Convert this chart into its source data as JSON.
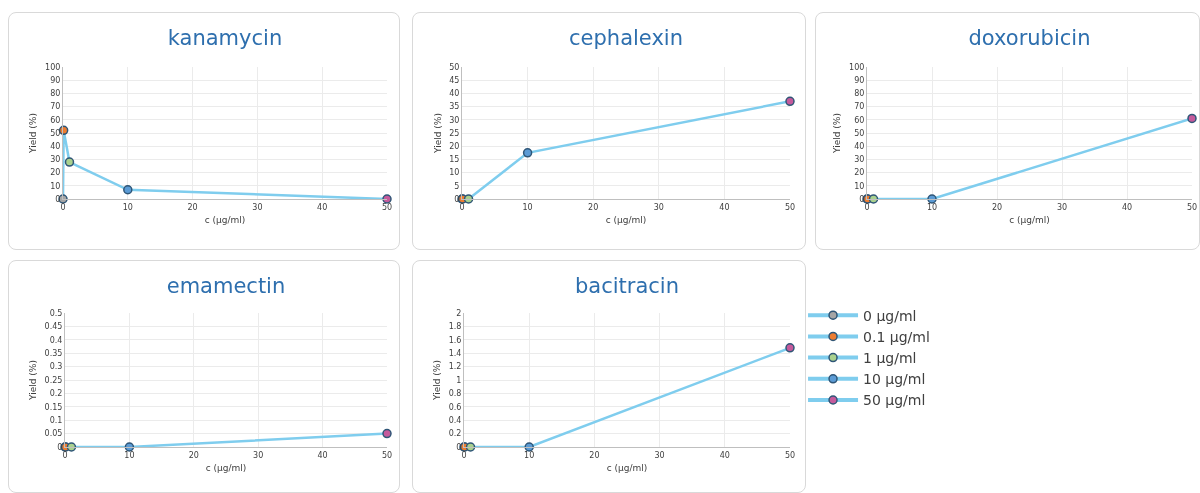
{
  "chart_data": [
    {
      "type": "line",
      "title": "kanamycin",
      "xlabel": "c (µg/ml)",
      "ylabel": "Yield (%)",
      "xlim": [
        0,
        50
      ],
      "xticks": [
        0,
        10,
        20,
        30,
        40,
        50
      ],
      "ylim": [
        0,
        100
      ],
      "yticks": [
        0,
        10,
        20,
        30,
        40,
        50,
        60,
        70,
        80,
        90,
        100
      ],
      "grid": true,
      "marker": "circle",
      "series": [
        {
          "color": "#7fcdee",
          "x": [
            0,
            0.1,
            1,
            10,
            50
          ],
          "values": [
            0,
            52,
            28,
            7,
            0
          ],
          "marker": "none"
        },
        {
          "type": "scatter",
          "color": "#a5a5a5",
          "x": [
            0
          ],
          "values": [
            0
          ]
        },
        {
          "type": "scatter",
          "color": "#ed7d31",
          "x": [
            0.1
          ],
          "values": [
            52
          ]
        },
        {
          "type": "scatter",
          "color": "#a9d18e",
          "x": [
            1
          ],
          "values": [
            28
          ]
        },
        {
          "type": "scatter",
          "color": "#5b9bd5",
          "x": [
            10
          ],
          "values": [
            7
          ]
        },
        {
          "type": "scatter",
          "color": "#c55a9c",
          "x": [
            50
          ],
          "values": [
            0
          ]
        }
      ]
    },
    {
      "type": "line",
      "title": "cephalexin",
      "xlabel": "c (µg/ml)",
      "ylabel": "Yield (%)",
      "xlim": [
        0,
        50
      ],
      "xticks": [
        0,
        10,
        20,
        30,
        40,
        50
      ],
      "ylim": [
        0,
        50
      ],
      "yticks": [
        0,
        5,
        10,
        15,
        20,
        25,
        30,
        35,
        40,
        45,
        50
      ],
      "grid": true,
      "marker": "circle",
      "series": [
        {
          "color": "#7fcdee",
          "x": [
            0,
            0.1,
            1,
            10,
            50
          ],
          "values": [
            0,
            0,
            0,
            17.5,
            37
          ],
          "marker": "none"
        },
        {
          "type": "scatter",
          "color": "#a5a5a5",
          "x": [
            0
          ],
          "values": [
            0
          ]
        },
        {
          "type": "scatter",
          "color": "#ed7d31",
          "x": [
            0.1
          ],
          "values": [
            0
          ]
        },
        {
          "type": "scatter",
          "color": "#a9d18e",
          "x": [
            1
          ],
          "values": [
            0
          ]
        },
        {
          "type": "scatter",
          "color": "#5b9bd5",
          "x": [
            10
          ],
          "values": [
            17.5
          ]
        },
        {
          "type": "scatter",
          "color": "#c55a9c",
          "x": [
            50
          ],
          "values": [
            37
          ]
        }
      ]
    },
    {
      "type": "line",
      "title": "doxorubicin",
      "xlabel": "c (µg/ml)",
      "ylabel": "Yield (%)",
      "xlim": [
        0,
        50
      ],
      "xticks": [
        0,
        10,
        20,
        30,
        40,
        50
      ],
      "ylim": [
        0,
        100
      ],
      "yticks": [
        0,
        10,
        20,
        30,
        40,
        50,
        60,
        70,
        80,
        90,
        100
      ],
      "grid": true,
      "marker": "circle",
      "series": [
        {
          "color": "#7fcdee",
          "x": [
            0,
            0.1,
            1,
            10,
            50
          ],
          "values": [
            0,
            0,
            0,
            0,
            61
          ],
          "marker": "none"
        },
        {
          "type": "scatter",
          "color": "#a5a5a5",
          "x": [
            0
          ],
          "values": [
            0
          ]
        },
        {
          "type": "scatter",
          "color": "#ed7d31",
          "x": [
            0.1
          ],
          "values": [
            0
          ]
        },
        {
          "type": "scatter",
          "color": "#a9d18e",
          "x": [
            1
          ],
          "values": [
            0
          ]
        },
        {
          "type": "scatter",
          "color": "#5b9bd5",
          "x": [
            10
          ],
          "values": [
            0
          ]
        },
        {
          "type": "scatter",
          "color": "#c55a9c",
          "x": [
            50
          ],
          "values": [
            61
          ]
        }
      ]
    },
    {
      "type": "line",
      "title": "emamectin",
      "xlabel": "c (µg/ml)",
      "ylabel": "Yield (%)",
      "xlim": [
        0,
        50
      ],
      "xticks": [
        0,
        10,
        20,
        30,
        40,
        50
      ],
      "ylim": [
        0,
        0.5
      ],
      "yticks": [
        0,
        0.05,
        0.1,
        0.15,
        0.2,
        0.25,
        0.3,
        0.35,
        0.4,
        0.45,
        0.5
      ],
      "grid": true,
      "marker": "circle",
      "series": [
        {
          "color": "#7fcdee",
          "x": [
            0,
            0.1,
            1,
            10,
            50
          ],
          "values": [
            0,
            0,
            0,
            0,
            0.05
          ],
          "marker": "none"
        },
        {
          "type": "scatter",
          "color": "#a5a5a5",
          "x": [
            0
          ],
          "values": [
            0
          ]
        },
        {
          "type": "scatter",
          "color": "#ed7d31",
          "x": [
            0.1
          ],
          "values": [
            0
          ]
        },
        {
          "type": "scatter",
          "color": "#a9d18e",
          "x": [
            1
          ],
          "values": [
            0
          ]
        },
        {
          "type": "scatter",
          "color": "#5b9bd5",
          "x": [
            10
          ],
          "values": [
            0
          ]
        },
        {
          "type": "scatter",
          "color": "#c55a9c",
          "x": [
            50
          ],
          "values": [
            0.05
          ]
        }
      ]
    },
    {
      "type": "line",
      "title": "bacitracin",
      "xlabel": "c (µg/ml)",
      "ylabel": "Yield (%)",
      "xlim": [
        0,
        50
      ],
      "xticks": [
        0,
        10,
        20,
        30,
        40,
        50
      ],
      "ylim": [
        0,
        2
      ],
      "yticks": [
        0,
        0.2,
        0.4,
        0.6,
        0.8,
        1,
        1.2,
        1.4,
        1.6,
        1.8,
        2
      ],
      "grid": true,
      "marker": "circle",
      "legend": "right",
      "series": [
        {
          "color": "#7fcdee",
          "x": [
            0,
            0.1,
            1,
            10,
            50
          ],
          "values": [
            0,
            0,
            0,
            0,
            1.48
          ],
          "marker": "none"
        },
        {
          "type": "scatter",
          "name": "0 µg/ml",
          "color": "#a5a5a5",
          "x": [
            0
          ],
          "values": [
            0
          ]
        },
        {
          "type": "scatter",
          "name": "0.1 µg/ml",
          "color": "#ed7d31",
          "x": [
            0.1
          ],
          "values": [
            0
          ]
        },
        {
          "type": "scatter",
          "name": "1 µg/ml",
          "color": "#a9d18e",
          "x": [
            1
          ],
          "values": [
            0
          ]
        },
        {
          "type": "scatter",
          "name": "10 µg/ml",
          "color": "#5b9bd5",
          "x": [
            10
          ],
          "values": [
            0
          ]
        },
        {
          "type": "scatter",
          "name": "50 µg/ml",
          "color": "#c55a9c",
          "x": [
            50
          ],
          "values": [
            1.48
          ]
        }
      ]
    }
  ]
}
